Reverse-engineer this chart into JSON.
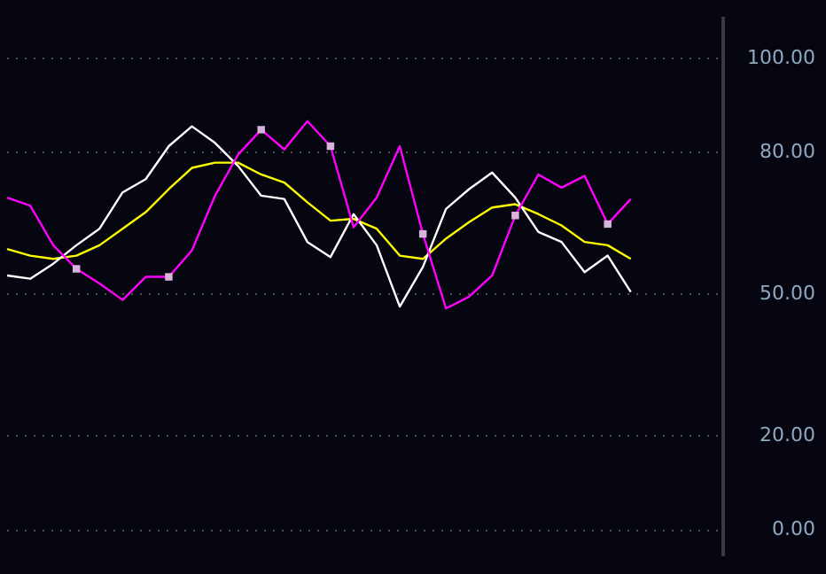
{
  "chart_data": {
    "type": "line",
    "categories": [
      null,
      null,
      null,
      null,
      null,
      null,
      null,
      null,
      null,
      null,
      null,
      null,
      null,
      null,
      null,
      null,
      null,
      null,
      null,
      null,
      null,
      null,
      null,
      null,
      null,
      null,
      null,
      null,
      null,
      null,
      null,
      null
    ],
    "series": [
      {
        "color": "#ffff00",
        "values": [
          59.6,
          58.2,
          57.5,
          58.2,
          60.4,
          63.9,
          67.4,
          72.3,
          76.8,
          77.9,
          77.9,
          75.4,
          73.7,
          69.5,
          65.6,
          66.0,
          63.9,
          58.2,
          57.5,
          61.8,
          65.3,
          68.4,
          69.1,
          67.0,
          64.6,
          61.1,
          60.4,
          57.5,
          null,
          null,
          null,
          null
        ]
      },
      {
        "color": "#ffffff",
        "values": [
          54.0,
          53.3,
          56.5,
          60.4,
          63.9,
          71.6,
          74.4,
          81.4,
          85.6,
          82.1,
          77.2,
          70.9,
          70.2,
          61.1,
          57.9,
          67.0,
          60.4,
          47.4,
          55.8,
          68.1,
          72.3,
          75.8,
          70.5,
          63.2,
          61.1,
          54.7,
          58.2,
          50.5,
          null,
          null,
          null,
          null
        ]
      },
      {
        "color": "#ff00ff",
        "values": [
          70.5,
          68.8,
          60.4,
          55.4,
          52.3,
          48.8,
          53.7,
          53.7,
          59.3,
          70.9,
          79.6,
          84.9,
          80.7,
          86.7,
          81.4,
          64.2,
          70.5,
          81.4,
          62.8,
          47.0,
          49.5,
          54.0,
          66.7,
          75.4,
          72.6,
          75.1,
          64.9,
          70.2,
          null,
          null,
          null,
          null
        ]
      },
      {
        "type": "scatter",
        "color": "#d8b4dc",
        "marker": "square",
        "values": [
          null,
          null,
          null,
          55.4,
          null,
          null,
          null,
          53.7,
          null,
          null,
          null,
          84.9,
          null,
          null,
          81.4,
          null,
          null,
          null,
          62.8,
          null,
          null,
          null,
          66.7,
          null,
          null,
          null,
          64.9,
          null,
          null,
          null,
          null,
          null
        ]
      }
    ],
    "ylim": [
      -5.3,
      108.4
    ],
    "yticks": [
      {
        "value": 0,
        "label": "0.00"
      },
      {
        "value": 20,
        "label": "20.00"
      },
      {
        "value": 50,
        "label": "50.00"
      },
      {
        "value": 80,
        "label": "80.00"
      },
      {
        "value": 100,
        "label": "100.00"
      }
    ],
    "grid": "y",
    "tick_labels": "y",
    "legend": false,
    "marker": "none",
    "line_style": "solid"
  }
}
